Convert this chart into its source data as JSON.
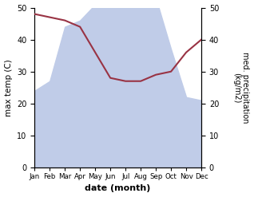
{
  "months": [
    "Jan",
    "Feb",
    "Mar",
    "Apr",
    "May",
    "Jun",
    "Jul",
    "Aug",
    "Sep",
    "Oct",
    "Nov",
    "Dec"
  ],
  "max_temp": [
    24,
    27,
    44,
    46,
    51,
    52,
    52,
    53,
    53,
    37,
    22,
    21
  ],
  "precipitation": [
    48,
    47,
    46,
    44,
    36,
    28,
    27,
    27,
    29,
    30,
    36,
    40
  ],
  "temp_fill_color": "#c0cce8",
  "precip_color": "#993344",
  "ylabel_left": "max temp (C)",
  "ylabel_right": "med. precipitation\n(kg/m2)",
  "xlabel": "date (month)",
  "ylim_left": [
    0,
    50
  ],
  "ylim_right": [
    0,
    50
  ],
  "yticks_left": [
    0,
    10,
    20,
    30,
    40,
    50
  ],
  "yticks_right": [
    0,
    10,
    20,
    30,
    40,
    50
  ],
  "background_color": "#ffffff"
}
